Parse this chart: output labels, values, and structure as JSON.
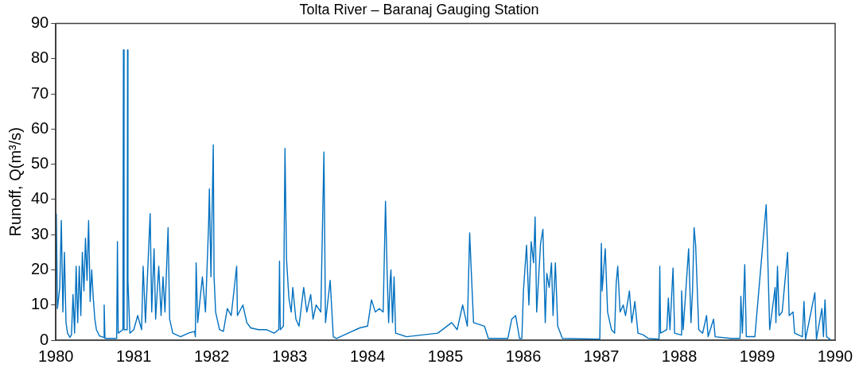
{
  "chart_data": {
    "type": "line",
    "title": "Tolta River – Baranaj Gauging Station",
    "ylabel": "Runoff, Q(m³/s)",
    "xlim": [
      1980,
      1990
    ],
    "xticks": [
      1980,
      1981,
      1982,
      1983,
      1984,
      1985,
      1986,
      1987,
      1988,
      1989,
      1990
    ],
    "ylim": [
      0,
      90
    ],
    "yticks": [
      0,
      10,
      20,
      30,
      40,
      50,
      60,
      70,
      80,
      90
    ],
    "grid": false,
    "legend": false,
    "marker": "none",
    "line_style": "solid",
    "series": [
      {
        "color": "#0070c0",
        "x": [
          1980.006,
          1980.02,
          1980.05,
          1980.07,
          1980.09,
          1980.11,
          1980.13,
          1980.15,
          1980.18,
          1980.2,
          1980.22,
          1980.24,
          1980.26,
          1980.28,
          1980.3,
          1980.32,
          1980.34,
          1980.36,
          1980.38,
          1980.4,
          1980.42,
          1980.44,
          1980.46,
          1980.48,
          1980.5,
          1980.52,
          1980.56,
          1980.61,
          1980.62,
          1980.63,
          1980.7,
          1980.78,
          1980.79,
          1980.8,
          1980.86,
          1980.867,
          1980.875,
          1980.915,
          1980.92,
          1980.925,
          1980.95,
          1981.0,
          1981.05,
          1981.1,
          1981.12,
          1981.15,
          1981.21,
          1981.23,
          1981.26,
          1981.28,
          1981.32,
          1981.35,
          1981.375,
          1981.4,
          1981.44,
          1981.46,
          1981.5,
          1981.6,
          1981.7,
          1981.78,
          1981.79,
          1981.8,
          1981.82,
          1981.88,
          1981.92,
          1981.96,
          1981.97,
          1981.99,
          1982.02,
          1982.03,
          1982.05,
          1982.1,
          1982.15,
          1982.2,
          1982.25,
          1982.32,
          1982.33,
          1982.4,
          1982.45,
          1982.5,
          1982.6,
          1982.7,
          1982.8,
          1982.86,
          1982.87,
          1982.88,
          1982.92,
          1982.94,
          1982.96,
          1982.99,
          1983.02,
          1983.04,
          1983.08,
          1983.12,
          1983.18,
          1983.22,
          1983.27,
          1983.3,
          1983.34,
          1983.4,
          1983.44,
          1983.46,
          1983.52,
          1983.56,
          1983.6,
          1983.7,
          1983.8,
          1983.9,
          1984.0,
          1984.05,
          1984.1,
          1984.15,
          1984.2,
          1984.23,
          1984.25,
          1984.27,
          1984.29,
          1984.3,
          1984.32,
          1984.34,
          1984.36,
          1984.5,
          1984.7,
          1984.9,
          1985.08,
          1985.15,
          1985.22,
          1985.28,
          1985.31,
          1985.33,
          1985.36,
          1985.5,
          1985.55,
          1985.8,
          1985.85,
          1985.9,
          1985.95,
          1985.98,
          1986.0,
          1986.04,
          1986.07,
          1986.1,
          1986.13,
          1986.15,
          1986.17,
          1986.22,
          1986.25,
          1986.28,
          1986.3,
          1986.33,
          1986.36,
          1986.38,
          1986.41,
          1986.44,
          1986.5,
          1986.98,
          1987.0,
          1987.01,
          1987.05,
          1987.08,
          1987.13,
          1987.17,
          1987.19,
          1987.21,
          1987.24,
          1987.28,
          1987.31,
          1987.36,
          1987.39,
          1987.43,
          1987.47,
          1987.54,
          1987.6,
          1987.74,
          1987.75,
          1987.76,
          1987.84,
          1987.86,
          1987.88,
          1987.92,
          1987.94,
          1988.02,
          1988.03,
          1988.05,
          1988.12,
          1988.15,
          1988.17,
          1988.19,
          1988.21,
          1988.25,
          1988.3,
          1988.35,
          1988.37,
          1988.44,
          1988.46,
          1988.66,
          1988.78,
          1988.79,
          1988.81,
          1988.84,
          1988.86,
          1988.97,
          1989.115,
          1989.13,
          1989.16,
          1989.23,
          1989.24,
          1989.26,
          1989.28,
          1989.32,
          1989.39,
          1989.41,
          1989.46,
          1989.48,
          1989.58,
          1989.6,
          1989.62,
          1989.69,
          1989.74,
          1989.76,
          1989.83,
          1989.85,
          1989.87,
          1989.89,
          1989.95
        ],
        "values": [
          36,
          9,
          15,
          34,
          8,
          25,
          5,
          2,
          0.8,
          1.5,
          13,
          2,
          21,
          5,
          21,
          7,
          25,
          14,
          29,
          17,
          34,
          11,
          20,
          12,
          6,
          3,
          1.2,
          0.8,
          10,
          0.5,
          0.5,
          0.5,
          28,
          2,
          3,
          82.5,
          3,
          3,
          82.5,
          17,
          2,
          3,
          7,
          3,
          21,
          5,
          36,
          8,
          26,
          6,
          21,
          7,
          18,
          8,
          32,
          6,
          2,
          1,
          2,
          2.5,
          1,
          22,
          5,
          18,
          8,
          33,
          43,
          18,
          55.5,
          18,
          8,
          3,
          2.5,
          9,
          7,
          21,
          7,
          10,
          5,
          3.5,
          3,
          3,
          2,
          3,
          22.5,
          3,
          4,
          54.5,
          23,
          12,
          8,
          15,
          6,
          4,
          15,
          8,
          13,
          6,
          10,
          8,
          53.5,
          5,
          17,
          1,
          0.5,
          1.5,
          2.5,
          3.5,
          4,
          11.5,
          8,
          9,
          8,
          39.5,
          20,
          5,
          17,
          20,
          5,
          18,
          2,
          1,
          1.5,
          2,
          5,
          3,
          10,
          4,
          30.5,
          20,
          5,
          4,
          0.5,
          0.5,
          6,
          7,
          0.5,
          0.5,
          14,
          27,
          10,
          28,
          22,
          35,
          8,
          27.5,
          31.5,
          5,
          19,
          15,
          22,
          7,
          22,
          4,
          0.5,
          0.3,
          27.5,
          14,
          26,
          8,
          3,
          2,
          16,
          21,
          8,
          10,
          7,
          14,
          5,
          11,
          2,
          1.5,
          0.5,
          0.3,
          21,
          2,
          3,
          12,
          3,
          20.5,
          2,
          1.5,
          14,
          3,
          26,
          5,
          14,
          32,
          27,
          3,
          2,
          7,
          1,
          6,
          1,
          0.5,
          0.5,
          12.5,
          2,
          21.5,
          1,
          1,
          38.5,
          28,
          3,
          15,
          5,
          21,
          7,
          8,
          25,
          7,
          8,
          2,
          1,
          11,
          0.3,
          8,
          13.5,
          0.3,
          9,
          1,
          11.5,
          1,
          0
        ]
      }
    ]
  }
}
